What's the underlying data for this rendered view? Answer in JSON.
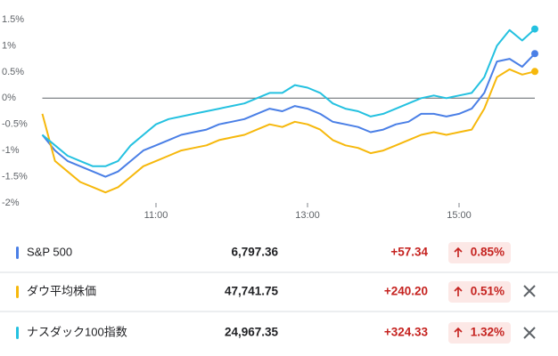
{
  "chart_data": {
    "type": "line",
    "x": [
      "09:30",
      "09:40",
      "09:50",
      "10:00",
      "10:10",
      "10:20",
      "10:30",
      "10:40",
      "10:50",
      "11:00",
      "11:10",
      "11:20",
      "11:30",
      "11:40",
      "11:50",
      "12:00",
      "12:10",
      "12:20",
      "12:30",
      "12:40",
      "12:50",
      "13:00",
      "13:10",
      "13:20",
      "13:30",
      "13:40",
      "13:50",
      "14:00",
      "14:10",
      "14:20",
      "14:30",
      "14:40",
      "14:50",
      "15:00",
      "15:10",
      "15:20",
      "15:30",
      "15:40",
      "15:50",
      "16:00"
    ],
    "xlim": [
      "09:30",
      "16:00"
    ],
    "xticks": [
      "11:00",
      "13:00",
      "15:00"
    ],
    "ylim": [
      -2,
      1.5
    ],
    "yticks": [
      {
        "value": 1.5,
        "label": "1.5%"
      },
      {
        "value": 1,
        "label": "1%"
      },
      {
        "value": 0.5,
        "label": "0.5%"
      },
      {
        "value": 0,
        "label": "0%"
      },
      {
        "value": -0.5,
        "label": "-0.5%"
      },
      {
        "value": -1,
        "label": "-1%"
      },
      {
        "value": -1.5,
        "label": "-1.5%"
      },
      {
        "value": -2,
        "label": "-2%"
      }
    ],
    "grid": false,
    "series": [
      {
        "name": "S&P 500",
        "color": "#4a7fe6",
        "values": [
          -0.7,
          -1.0,
          -1.2,
          -1.3,
          -1.4,
          -1.5,
          -1.4,
          -1.2,
          -1.0,
          -0.9,
          -0.8,
          -0.7,
          -0.65,
          -0.6,
          -0.5,
          -0.45,
          -0.4,
          -0.3,
          -0.2,
          -0.25,
          -0.15,
          -0.2,
          -0.3,
          -0.45,
          -0.5,
          -0.55,
          -0.65,
          -0.6,
          -0.5,
          -0.45,
          -0.3,
          -0.3,
          -0.35,
          -0.3,
          -0.2,
          0.1,
          0.7,
          0.75,
          0.6,
          0.85
        ]
      },
      {
        "name": "ダウ平均株価",
        "color": "#f6b80c",
        "values": [
          -0.3,
          -1.2,
          -1.4,
          -1.6,
          -1.7,
          -1.8,
          -1.7,
          -1.5,
          -1.3,
          -1.2,
          -1.1,
          -1.0,
          -0.95,
          -0.9,
          -0.8,
          -0.75,
          -0.7,
          -0.6,
          -0.5,
          -0.55,
          -0.45,
          -0.5,
          -0.6,
          -0.8,
          -0.9,
          -0.95,
          -1.05,
          -1.0,
          -0.9,
          -0.8,
          -0.7,
          -0.65,
          -0.7,
          -0.65,
          -0.6,
          -0.2,
          0.4,
          0.55,
          0.45,
          0.51
        ]
      },
      {
        "name": "ナスダック100指数",
        "color": "#24c1e0",
        "values": [
          -0.7,
          -0.9,
          -1.1,
          -1.2,
          -1.3,
          -1.3,
          -1.2,
          -0.9,
          -0.7,
          -0.5,
          -0.4,
          -0.35,
          -0.3,
          -0.25,
          -0.2,
          -0.15,
          -0.1,
          0.0,
          0.1,
          0.1,
          0.25,
          0.2,
          0.1,
          -0.1,
          -0.2,
          -0.25,
          -0.35,
          -0.3,
          -0.2,
          -0.1,
          0.0,
          0.05,
          0.0,
          0.05,
          0.1,
          0.4,
          1.0,
          1.3,
          1.1,
          1.32
        ]
      }
    ]
  },
  "table": {
    "rows": [
      {
        "price": "6,797.36",
        "change": "+57.34",
        "percent": "0.85%"
      },
      {
        "price": "47,741.75",
        "change": "+240.20",
        "percent": "0.51%"
      },
      {
        "price": "24,967.35",
        "change": "+324.33",
        "percent": "1.32%"
      }
    ]
  }
}
